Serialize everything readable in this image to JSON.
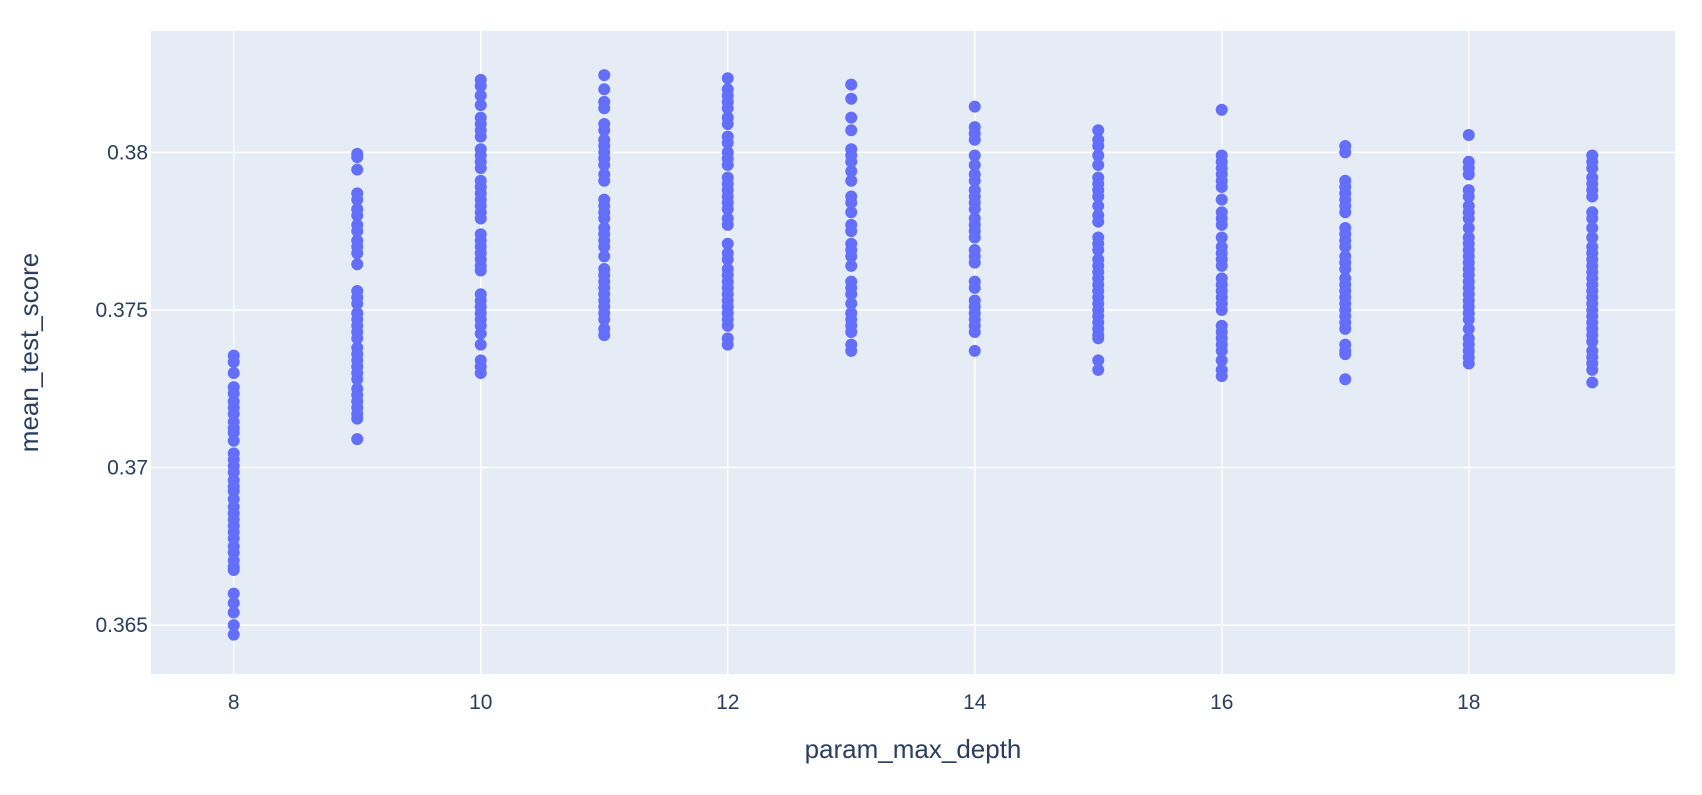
{
  "chart_data": {
    "type": "scatter",
    "title": "",
    "xlabel": "param_max_depth",
    "ylabel": "mean_test_score",
    "xlim": [
      7.33,
      19.67
    ],
    "ylim": [
      0.36345,
      0.38385
    ],
    "x_ticks": [
      8,
      10,
      12,
      14,
      16,
      18
    ],
    "y_ticks": [
      0.365,
      0.37,
      0.375,
      0.38
    ],
    "x_tick_labels": [
      "8",
      "10",
      "12",
      "14",
      "16",
      "18"
    ],
    "y_tick_labels": [
      "0.365",
      "0.37",
      "0.375",
      "0.38"
    ],
    "grid": true,
    "legend": "none",
    "colors": {
      "marker": "#636efa",
      "plot_bg": "#e5ecf6",
      "grid": "#ffffff",
      "text": "#2a3f5f"
    },
    "series": [
      {
        "x": 8,
        "y": [
          0.37355,
          0.37335,
          0.373,
          0.37255,
          0.37235,
          0.3721,
          0.3719,
          0.3717,
          0.37145,
          0.37125,
          0.3711,
          0.37085,
          0.37045,
          0.37025,
          0.37005,
          0.36985,
          0.3696,
          0.3694,
          0.36925,
          0.369,
          0.36875,
          0.36855,
          0.36835,
          0.36815,
          0.36795,
          0.36775,
          0.3675,
          0.3673,
          0.36705,
          0.36685,
          0.36675,
          0.366,
          0.3657,
          0.3654,
          0.365,
          0.3647
        ]
      },
      {
        "x": 9,
        "y": [
          0.37995,
          0.37985,
          0.37945,
          0.3787,
          0.3785,
          0.3782,
          0.378,
          0.3777,
          0.3775,
          0.3772,
          0.377,
          0.3768,
          0.37645,
          0.3756,
          0.3754,
          0.3752,
          0.3749,
          0.3747,
          0.3745,
          0.3743,
          0.3741,
          0.3738,
          0.3736,
          0.3734,
          0.3732,
          0.373,
          0.3728,
          0.3725,
          0.3723,
          0.3721,
          0.3719,
          0.3717,
          0.37155,
          0.3709
        ]
      },
      {
        "x": 10,
        "y": [
          0.3823,
          0.3821,
          0.3818,
          0.3815,
          0.3811,
          0.3809,
          0.3807,
          0.3805,
          0.3801,
          0.3799,
          0.3797,
          0.3795,
          0.3791,
          0.3789,
          0.3787,
          0.3785,
          0.3783,
          0.3781,
          0.3779,
          0.3774,
          0.3772,
          0.377,
          0.3768,
          0.3766,
          0.3764,
          0.37625,
          0.3755,
          0.3753,
          0.3751,
          0.3749,
          0.3747,
          0.3745,
          0.37425,
          0.3739,
          0.3734,
          0.3732,
          0.373
        ]
      },
      {
        "x": 11,
        "y": [
          0.38245,
          0.382,
          0.3816,
          0.3814,
          0.3809,
          0.3807,
          0.3804,
          0.3802,
          0.38,
          0.3798,
          0.3796,
          0.3793,
          0.3791,
          0.3785,
          0.3783,
          0.3781,
          0.3779,
          0.3776,
          0.3774,
          0.3772,
          0.377,
          0.3767,
          0.3763,
          0.3761,
          0.3759,
          0.3757,
          0.3755,
          0.3753,
          0.3751,
          0.3749,
          0.3747,
          0.3744,
          0.3742
        ]
      },
      {
        "x": 12,
        "y": [
          0.38235,
          0.382,
          0.3818,
          0.3816,
          0.3814,
          0.3811,
          0.3809,
          0.3805,
          0.3803,
          0.38,
          0.3798,
          0.3796,
          0.3792,
          0.379,
          0.3788,
          0.3786,
          0.3784,
          0.3782,
          0.3779,
          0.3777,
          0.3771,
          0.3768,
          0.3766,
          0.3763,
          0.3761,
          0.3759,
          0.3757,
          0.3755,
          0.3753,
          0.3751,
          0.3749,
          0.3747,
          0.3745,
          0.3741,
          0.3739
        ]
      },
      {
        "x": 13,
        "y": [
          0.38215,
          0.3817,
          0.3811,
          0.3807,
          0.3801,
          0.3799,
          0.3797,
          0.3794,
          0.3791,
          0.3786,
          0.3784,
          0.3781,
          0.3777,
          0.3775,
          0.3771,
          0.3769,
          0.3767,
          0.3764,
          0.3759,
          0.3757,
          0.3755,
          0.3752,
          0.3749,
          0.3747,
          0.3745,
          0.3743,
          0.3739,
          0.3737
        ]
      },
      {
        "x": 14,
        "y": [
          0.38145,
          0.3808,
          0.3806,
          0.3804,
          0.3799,
          0.3796,
          0.3793,
          0.3791,
          0.3788,
          0.3786,
          0.3784,
          0.3782,
          0.3779,
          0.3777,
          0.3775,
          0.3773,
          0.3769,
          0.3767,
          0.3765,
          0.3759,
          0.3757,
          0.3753,
          0.3751,
          0.3749,
          0.3747,
          0.3745,
          0.3743,
          0.3737
        ]
      },
      {
        "x": 15,
        "y": [
          0.3807,
          0.3804,
          0.3802,
          0.3799,
          0.3796,
          0.3792,
          0.379,
          0.3788,
          0.3786,
          0.3783,
          0.378,
          0.3778,
          0.3773,
          0.3771,
          0.3769,
          0.3766,
          0.3764,
          0.3762,
          0.376,
          0.3758,
          0.3756,
          0.3754,
          0.3752,
          0.375,
          0.3748,
          0.3746,
          0.3744,
          0.3742,
          0.3741,
          0.3734,
          0.3731
        ]
      },
      {
        "x": 16,
        "y": [
          0.38135,
          0.3799,
          0.3797,
          0.3795,
          0.3793,
          0.3791,
          0.3789,
          0.3785,
          0.3781,
          0.3779,
          0.3777,
          0.3773,
          0.377,
          0.3768,
          0.3766,
          0.3764,
          0.376,
          0.3758,
          0.3756,
          0.3754,
          0.3752,
          0.375,
          0.3745,
          0.3743,
          0.3741,
          0.3739,
          0.3737,
          0.3734,
          0.3731,
          0.3729
        ]
      },
      {
        "x": 17,
        "y": [
          0.3802,
          0.38,
          0.3791,
          0.3789,
          0.3787,
          0.3785,
          0.3783,
          0.3781,
          0.3776,
          0.3774,
          0.3772,
          0.377,
          0.3767,
          0.3765,
          0.3763,
          0.376,
          0.3758,
          0.3756,
          0.3754,
          0.3752,
          0.375,
          0.3748,
          0.3746,
          0.3744,
          0.3739,
          0.3737,
          0.3736,
          0.3728
        ]
      },
      {
        "x": 18,
        "y": [
          0.38055,
          0.3797,
          0.3795,
          0.3793,
          0.3788,
          0.3786,
          0.3783,
          0.3781,
          0.3779,
          0.3776,
          0.3773,
          0.3771,
          0.3769,
          0.3767,
          0.3765,
          0.3763,
          0.3761,
          0.3759,
          0.3757,
          0.3755,
          0.3753,
          0.3751,
          0.3749,
          0.3747,
          0.3744,
          0.3741,
          0.3739,
          0.3737,
          0.3735,
          0.3733
        ]
      },
      {
        "x": 19,
        "y": [
          0.3799,
          0.3797,
          0.3795,
          0.3792,
          0.379,
          0.3788,
          0.3786,
          0.3781,
          0.3779,
          0.3776,
          0.3773,
          0.377,
          0.3768,
          0.3766,
          0.3764,
          0.3762,
          0.376,
          0.3758,
          0.3756,
          0.3754,
          0.3752,
          0.375,
          0.3748,
          0.3746,
          0.3744,
          0.3742,
          0.374,
          0.3737,
          0.3735,
          0.3733,
          0.3731,
          0.3727
        ]
      }
    ]
  }
}
